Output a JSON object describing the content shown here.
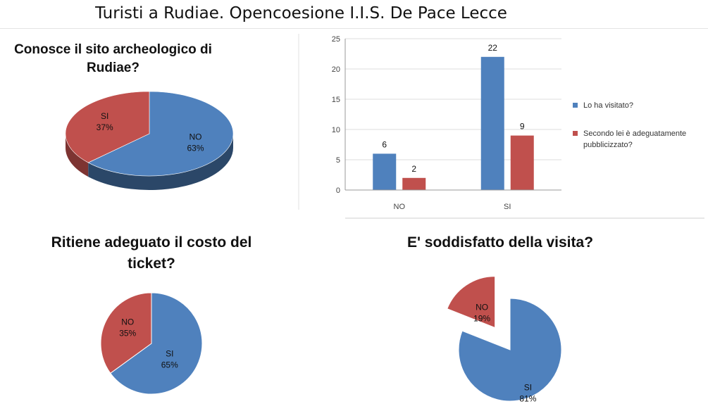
{
  "page": {
    "title": "Turisti a Rudiae. Opencoesione I.I.S. De Pace Lecce"
  },
  "colors": {
    "blue": "#4F81BD",
    "red": "#C0504D"
  },
  "chart_data": [
    {
      "type": "pie",
      "style": "3d",
      "title": "Conosce il sito archeologico di Rudiae?",
      "slices": [
        {
          "label": "NO",
          "value": 63,
          "pct": "63%",
          "color": "#4F81BD"
        },
        {
          "label": "SI",
          "value": 37,
          "pct": "37%",
          "color": "#C0504D"
        }
      ]
    },
    {
      "type": "bar",
      "categories": [
        "NO",
        "SI"
      ],
      "series": [
        {
          "name": "Lo ha visitato?",
          "values": [
            6,
            22
          ],
          "color": "#4F81BD"
        },
        {
          "name": "Secondo lei è adeguatamente pubblicizzato?",
          "values": [
            2,
            9
          ],
          "color": "#C0504D"
        }
      ],
      "ylim": [
        0,
        25
      ],
      "yticks": [
        "0",
        "5",
        "10",
        "15",
        "20",
        "25"
      ],
      "grid": true,
      "legend": "right"
    },
    {
      "type": "pie",
      "title": "Ritiene adeguato il costo del ticket?",
      "slices": [
        {
          "label": "SI",
          "value": 65,
          "pct": "65%",
          "color": "#4F81BD"
        },
        {
          "label": "NO",
          "value": 35,
          "pct": "35%",
          "color": "#C0504D"
        }
      ]
    },
    {
      "type": "pie",
      "style": "exploded",
      "title": "E' soddisfatto della visita?",
      "slices": [
        {
          "label": "SI",
          "value": 81,
          "pct": "81%",
          "color": "#4F81BD"
        },
        {
          "label": "NO",
          "value": 19,
          "pct": "19%",
          "color": "#C0504D",
          "exploded": true
        }
      ]
    }
  ]
}
